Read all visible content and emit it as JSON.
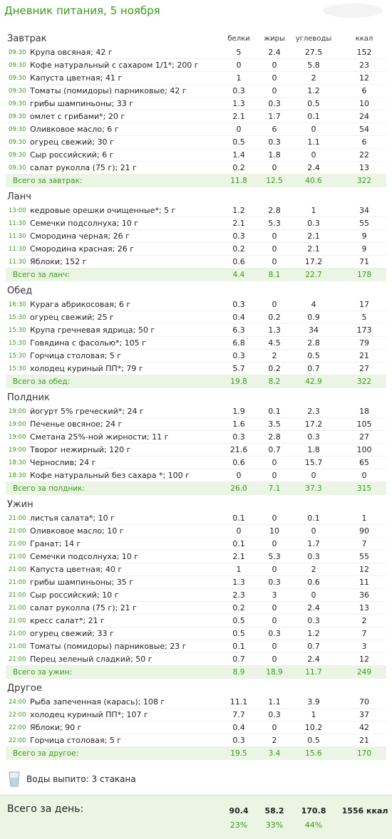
{
  "header": {
    "title": "Дневник питания, 5 ноября",
    "columns": [
      "белки",
      "жиры",
      "углеводы",
      "ккал"
    ]
  },
  "sections": [
    {
      "title": "Завтрак",
      "rows": [
        [
          "09:30",
          "Крупа овсяная; 42 г",
          "5",
          "2.4",
          "27.5",
          "152"
        ],
        [
          "09:30",
          "Кофе натуральный  с сахаром 1/1*; 200 г",
          "0",
          "0",
          "5.8",
          "23"
        ],
        [
          "09:30",
          "Капуста цветная; 41 г",
          "1",
          "0",
          "2",
          "12"
        ],
        [
          "09:30",
          "Томаты (помидоры) парниковые; 42 г",
          "0.3",
          "0",
          "1.2",
          "6"
        ],
        [
          "09:30",
          "грибы шампиньоны; 33 г",
          "1.3",
          "0.3",
          "0.5",
          "10"
        ],
        [
          "09:30",
          "омлет с грибами*; 20 г",
          "2.1",
          "1.7",
          "0.1",
          "24"
        ],
        [
          "09:30",
          "Оливковое масло; 6 г",
          "0",
          "6",
          "0",
          "54"
        ],
        [
          "09:30",
          "огурец свежий; 30 г",
          "0.5",
          "0.3",
          "1.1",
          "6"
        ],
        [
          "09:30",
          "Сыр российский; 6 г",
          "1.4",
          "1.8",
          "0",
          "22"
        ],
        [
          "09:30",
          "салат руколла (75 г); 21 г",
          "0.2",
          "0",
          "2.4",
          "13"
        ]
      ],
      "total": [
        "Всего за завтрак:",
        "11.8",
        "12.5",
        "40.6",
        "322"
      ]
    },
    {
      "title": "Ланч",
      "rows": [
        [
          "13:00",
          "кедровые орешки очищенные*; 5 г",
          "1.2",
          "2.8",
          "1",
          "34"
        ],
        [
          "11:30",
          "Семечки подсолнуха; 10 г",
          "2.1",
          "5.3",
          "0.3",
          "55"
        ],
        [
          "11:30",
          "Смородина черная; 26 г",
          "0.3",
          "0",
          "2.1",
          "9"
        ],
        [
          "11:30",
          "Смородина красная; 26 г",
          "0.2",
          "0",
          "2.1",
          "9"
        ],
        [
          "11:30",
          "Яблоки; 152 г",
          "0.6",
          "0",
          "17.2",
          "71"
        ]
      ],
      "total": [
        "Всего за ланч:",
        "4.4",
        "8.1",
        "22.7",
        "178"
      ]
    },
    {
      "title": "Обед",
      "rows": [
        [
          "16:30",
          "Курага абрикосовая; 6 г",
          "0.3",
          "0",
          "4",
          "17"
        ],
        [
          "15:30",
          "огурец свежий; 25 г",
          "0.4",
          "0.2",
          "0.9",
          "5"
        ],
        [
          "15:30",
          "Крупа гречневая ядрица; 50 г",
          "6.3",
          "1.3",
          "34",
          "173"
        ],
        [
          "15:30",
          "Говядина с фасолью*; 105 г",
          "6.8",
          "4.5",
          "2.8",
          "79"
        ],
        [
          "15:30",
          "Горчица столовая; 5 г",
          "0.3",
          "2",
          "0.5",
          "21"
        ],
        [
          "15:30",
          "холодец куриный ПП*; 79 г",
          "5.7",
          "0.2",
          "0.7",
          "27"
        ]
      ],
      "total": [
        "Всего за обед:",
        "19.8",
        "8.2",
        "42.9",
        "322"
      ]
    },
    {
      "title": "Полдник",
      "rows": [
        [
          "19:00",
          "йогурт 5% греческий*; 24 г",
          "1.9",
          "0.1",
          "2.3",
          "18"
        ],
        [
          "19:00",
          "Печенье овсяное; 24 г",
          "1.6",
          "3.5",
          "17.2",
          "105"
        ],
        [
          "19:00",
          "Сметана 25%-ной жирности; 11 г",
          "0.3",
          "2.8",
          "0.3",
          "27"
        ],
        [
          "19:00",
          "Творог нежирный; 120 г",
          "21.6",
          "0.7",
          "1.8",
          "100"
        ],
        [
          "18:30",
          "Чернослив; 24 г",
          "0.6",
          "0",
          "15.7",
          "65"
        ],
        [
          "18:30",
          "Кофе натуральный без сахара *; 100 г",
          "0",
          "0",
          "0",
          "0"
        ]
      ],
      "total": [
        "Всего за полдник:",
        "26.0",
        "7.1",
        "37.3",
        "315"
      ]
    },
    {
      "title": "Ужин",
      "rows": [
        [
          "21:00",
          "листья салата*; 10 г",
          "0.1",
          "0",
          "0.1",
          "1"
        ],
        [
          "21:00",
          "Оливковое масло; 10 г",
          "0",
          "10",
          "0",
          "90"
        ],
        [
          "21:00",
          "Гранат; 14 г",
          "0.1",
          "0",
          "1.7",
          "7"
        ],
        [
          "21:00",
          "Семечки подсолнуха; 10 г",
          "2.1",
          "5.3",
          "0.3",
          "55"
        ],
        [
          "21:00",
          "Капуста цветная; 40 г",
          "1",
          "0",
          "2",
          "12"
        ],
        [
          "21:00",
          "грибы шампиньоны; 35 г",
          "1.3",
          "0.3",
          "0.6",
          "11"
        ],
        [
          "21:00",
          "Сыр российский; 10 г",
          "2.3",
          "3",
          "0",
          "36"
        ],
        [
          "21:00",
          "салат руколла (75 г); 21 г",
          "0.2",
          "0",
          "2.4",
          "13"
        ],
        [
          "21:00",
          "кресс салат*; 21 г",
          "0.5",
          "0",
          "0.3",
          "2"
        ],
        [
          "21:00",
          "огурец свежий; 33 г",
          "0.5",
          "0.3",
          "1.2",
          "7"
        ],
        [
          "21:00",
          "Томаты (помидоры) парниковые; 23 г",
          "0.1",
          "0",
          "0.7",
          "3"
        ],
        [
          "21:00",
          "Перец зеленый сладкий; 50 г",
          "0.7",
          "0",
          "2.4",
          "12"
        ]
      ],
      "total": [
        "Всего за ужин:",
        "8.9",
        "18.9",
        "11.7",
        "249"
      ]
    },
    {
      "title": "Другое",
      "rows": [
        [
          "24:00",
          "Рыба запеченная (карась); 108 г",
          "11.1",
          "1.1",
          "3.9",
          "70"
        ],
        [
          "22:00",
          "холодец куриный ПП*; 107 г",
          "7.7",
          "0.3",
          "1",
          "37"
        ],
        [
          "22:00",
          "Яблоки; 90 г",
          "0.4",
          "0",
          "10.2",
          "42"
        ],
        [
          "22:00",
          "Горчица столовая; 5 г",
          "0.3",
          "2",
          "0.5",
          "21"
        ]
      ],
      "total": [
        "Всего за другое:",
        "19.5",
        "3.4",
        "15.6",
        "170"
      ]
    }
  ],
  "water": "Воды выпито: 3 стакана",
  "day": {
    "label": "Всего за день:",
    "values": [
      "90.4",
      "58.2",
      "170.8",
      "1556 ккал"
    ],
    "percents": [
      "23%",
      "33%",
      "44%"
    ]
  }
}
